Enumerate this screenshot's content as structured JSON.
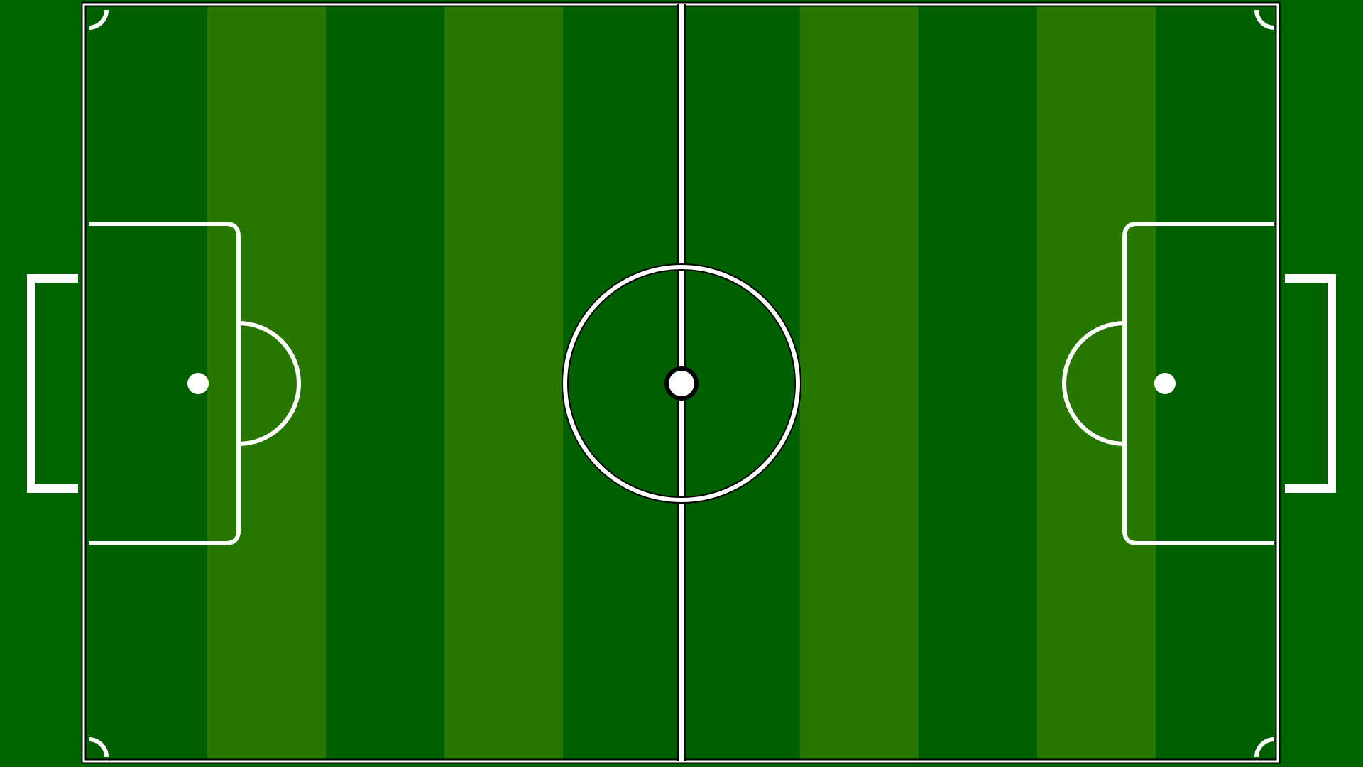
{
  "field": {
    "colors": {
      "outside": "#006400",
      "stripe_dark": "#005f00",
      "stripe_light": "#277600",
      "line_white": "#ffffff",
      "line_black": "#000000"
    },
    "stripes": [
      "dark",
      "light",
      "dark",
      "light",
      "dark",
      "dark",
      "light",
      "dark",
      "light",
      "dark"
    ],
    "halves": [
      "left",
      "right"
    ],
    "icons": {
      "center_spot": "center-spot-icon",
      "penalty_spot": "penalty-spot-icon",
      "corner_arc": "corner-arc-icon",
      "goal": "goal-icon"
    }
  }
}
